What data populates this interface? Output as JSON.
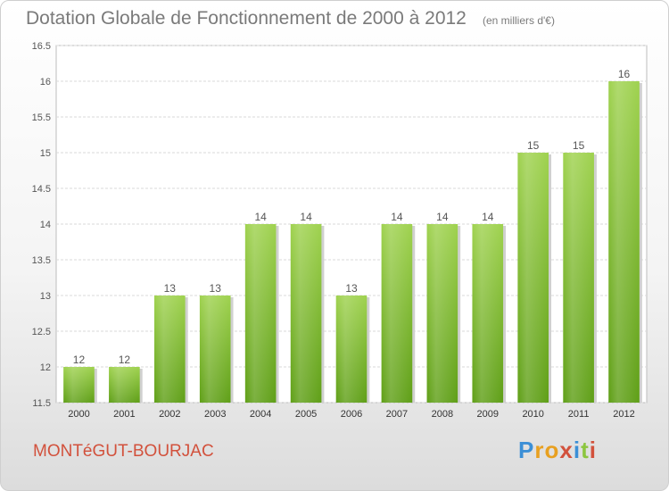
{
  "chart_data": {
    "type": "bar",
    "title": "Dotation Globale de Fonctionnement de 2000 à 2012",
    "subtitle": "(en milliers d'€)",
    "categories": [
      "2000",
      "2001",
      "2002",
      "2003",
      "2004",
      "2005",
      "2006",
      "2007",
      "2008",
      "2009",
      "2010",
      "2011",
      "2012"
    ],
    "values": [
      12,
      12,
      13,
      13,
      14,
      14,
      13,
      14,
      14,
      14,
      15,
      15,
      16
    ],
    "value_labels": [
      "12",
      "12",
      "13",
      "13",
      "14",
      "14",
      "13",
      "14",
      "14",
      "14",
      "15",
      "15",
      "16"
    ],
    "ylim": [
      11.5,
      16.5
    ],
    "yticks": [
      "11.5",
      "12",
      "12.5",
      "13",
      "13.5",
      "14",
      "14.5",
      "15",
      "15.5",
      "16",
      "16.5"
    ],
    "ytick_values": [
      11.5,
      12,
      12.5,
      13,
      13.5,
      14,
      14.5,
      15,
      15.5,
      16,
      16.5
    ],
    "grid": true,
    "bar_color": "#8cc63f"
  },
  "footer": {
    "commune": "MONTéGUT-BOURJAC",
    "logo_letters": [
      "P",
      "r",
      "o",
      "x",
      "i",
      "t",
      "i"
    ],
    "logo_colors": [
      "#3b8fd6",
      "#e8a020",
      "#e8a020",
      "#d2513c",
      "#3b8fd6",
      "#8cc63f",
      "#d2513c"
    ]
  }
}
